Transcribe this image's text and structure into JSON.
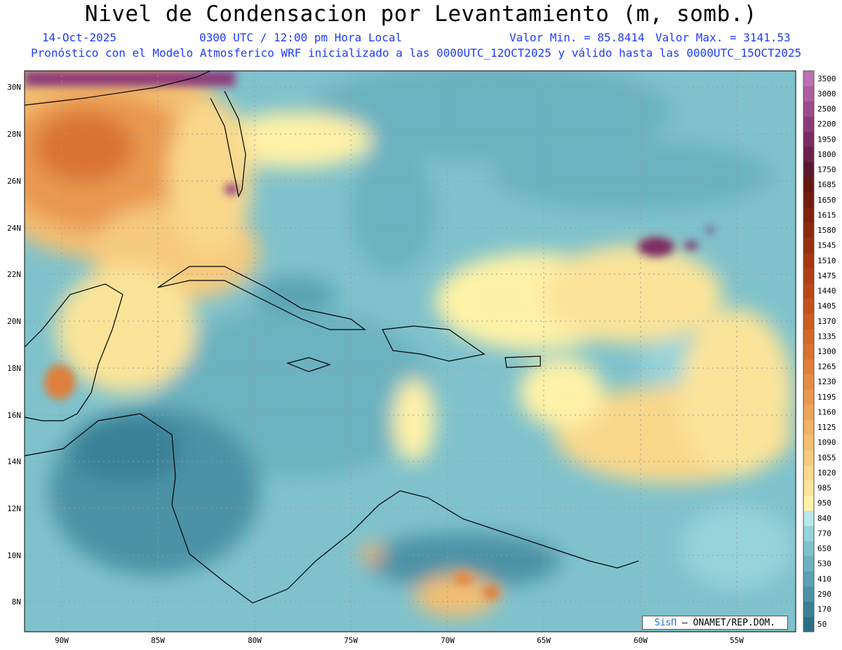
{
  "header": {
    "title": "Nivel de Condensacion por Levantamiento (m, somb.)",
    "date": "14-Oct-2025",
    "time": "0300 UTC / 12:00 pm Hora Local",
    "min_label": "Valor Min. = 85.8414",
    "max_label": "Valor Max. = 3141.53",
    "model_line": "Pronóstico con el Modelo Atmosferico WRF inicializado a las 0000UTC_12OCT2025 y válido hasta las  0000UTC_15OCT2025"
  },
  "axes": {
    "lat_labels": [
      "30N",
      "28N",
      "26N",
      "24N",
      "22N",
      "20N",
      "18N",
      "16N",
      "14N",
      "12N",
      "10N",
      "8N"
    ],
    "lon_labels": [
      "90W",
      "85W",
      "80W",
      "75W",
      "70W",
      "65W",
      "60W",
      "55W"
    ]
  },
  "colorbar": {
    "levels": [
      "50",
      "170",
      "290",
      "410",
      "530",
      "650",
      "770",
      "840",
      "950",
      "985",
      "1020",
      "1055",
      "1090",
      "1125",
      "1160",
      "1195",
      "1230",
      "1265",
      "1300",
      "1335",
      "1370",
      "1405",
      "1440",
      "1475",
      "1510",
      "1545",
      "1580",
      "1615",
      "1650",
      "1685",
      "1750",
      "1800",
      "1950",
      "2200",
      "2500",
      "3000",
      "3500"
    ],
    "colors": [
      "#2b6f86",
      "#3a8196",
      "#4b92a6",
      "#5aa2b3",
      "#6cb2c0",
      "#7fc2cc",
      "#96d3da",
      "#b9e6ea",
      "#fff2a8",
      "#fbe49a",
      "#f9d88c",
      "#f6cb7f",
      "#f3bf72",
      "#f0b266",
      "#eca55a",
      "#e9994f",
      "#e48c44",
      "#df7f3a",
      "#d97331",
      "#d26829",
      "#ca5d22",
      "#c2531c",
      "#b84917",
      "#ae4013",
      "#a33810",
      "#97300e",
      "#8b290d",
      "#7e220d",
      "#711c0e",
      "#64170f",
      "#5a1830",
      "#6a2149",
      "#7c2c62",
      "#8d3a79",
      "#9e4a8d",
      "#ad5da0",
      "#bb72b1"
    ]
  },
  "credit": {
    "brand": "SisΠ",
    "text": "– ONAMET/REP.DOM."
  }
}
